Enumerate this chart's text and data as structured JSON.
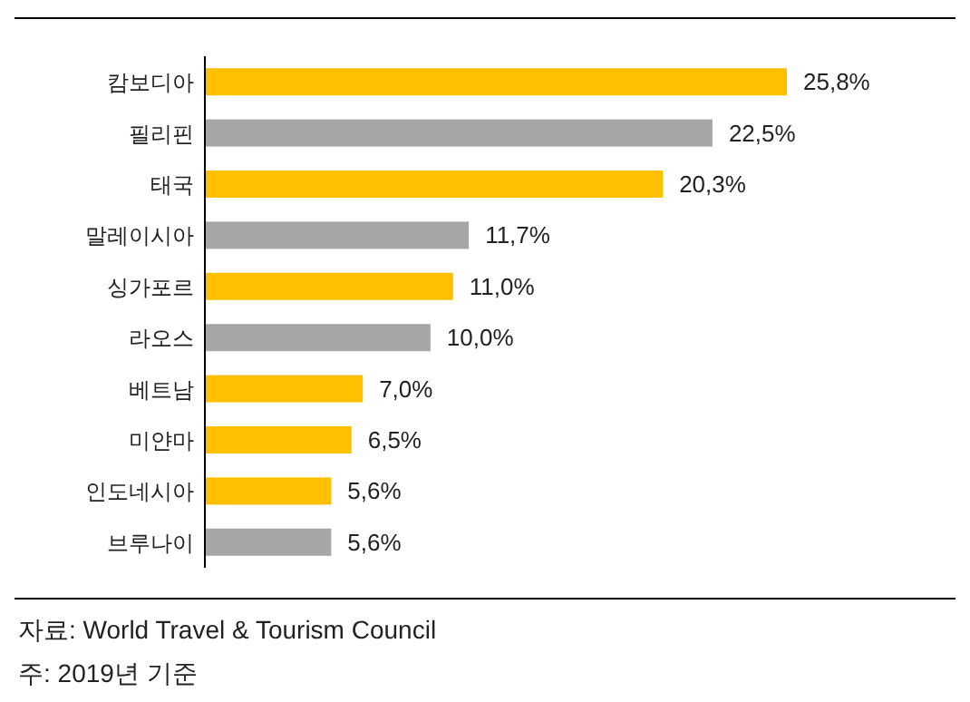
{
  "chart_data": {
    "type": "bar",
    "orientation": "horizontal",
    "categories": [
      "캄보디아",
      "필리핀",
      "태국",
      "말레이시아",
      "싱가포르",
      "라오스",
      "베트남",
      "미얀마",
      "인도네시아",
      "브루나이"
    ],
    "values": [
      25.8,
      22.5,
      20.3,
      11.7,
      11.0,
      10.0,
      7.0,
      6.5,
      5.6,
      5.6
    ],
    "value_labels": [
      "25,8%",
      "22,5%",
      "20,3%",
      "11,7%",
      "11,0%",
      "10,0%",
      "7,0%",
      "6,5%",
      "5,6%",
      "5,6%"
    ],
    "colors": [
      "#ffc000",
      "#a6a6a6",
      "#ffc000",
      "#a6a6a6",
      "#ffc000",
      "#a6a6a6",
      "#ffc000",
      "#ffc000",
      "#ffc000",
      "#a6a6a6"
    ],
    "annotations": [
      "자료: World Travel & Tourism Council",
      "주: 2019년 기준"
    ]
  }
}
